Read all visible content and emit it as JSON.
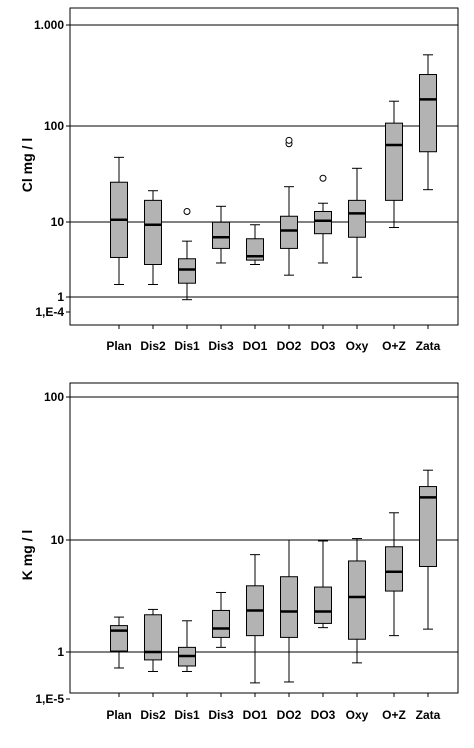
{
  "chart_data": [
    {
      "type": "boxplot",
      "ylabel": "Cl  mg / l",
      "yscale": "log",
      "ytick_labels": [
        "1,E-4",
        "1",
        "10",
        "100",
        "1.000"
      ],
      "categories": [
        "Plan",
        "Dis2",
        "Dis1",
        "Dis3",
        "DO1",
        "DO2",
        "DO3",
        "Oxy",
        "O+Z",
        "Zata"
      ],
      "boxes": [
        {
          "whisker_low": 1.4,
          "q1": 2.9,
          "median": 8.0,
          "q3": 22.0,
          "whisker_high": 43.0,
          "outliers": []
        },
        {
          "whisker_low": 1.4,
          "q1": 2.4,
          "median": 7.0,
          "q3": 13.5,
          "whisker_high": 17.5,
          "outliers": []
        },
        {
          "whisker_low": 0.93,
          "q1": 1.45,
          "median": 2.1,
          "q3": 2.8,
          "whisker_high": 4.5,
          "outliers": [
            10.0
          ]
        },
        {
          "whisker_low": 2.5,
          "q1": 3.7,
          "median": 5.0,
          "q3": 7.5,
          "whisker_high": 11.5,
          "outliers": []
        },
        {
          "whisker_low": 2.4,
          "q1": 2.7,
          "median": 3.0,
          "q3": 4.8,
          "whisker_high": 7.0,
          "outliers": []
        },
        {
          "whisker_low": 1.8,
          "q1": 3.7,
          "median": 6.0,
          "q3": 8.8,
          "whisker_high": 19.5,
          "outliers": [
            62.0,
            68.0
          ]
        },
        {
          "whisker_low": 2.5,
          "q1": 5.5,
          "median": 7.8,
          "q3": 10.0,
          "whisker_high": 12.5,
          "outliers": [
            24.5
          ]
        },
        {
          "whisker_low": 1.7,
          "q1": 5.0,
          "median": 9.5,
          "q3": 13.5,
          "whisker_high": 32.0,
          "outliers": []
        },
        {
          "whisker_low": 6.5,
          "q1": 13.5,
          "median": 60.0,
          "q3": 108.0,
          "whisker_high": 195.0,
          "outliers": []
        },
        {
          "whisker_low": 18.0,
          "q1": 50.0,
          "median": 205.0,
          "q3": 400.0,
          "whisker_high": 680.0,
          "outliers": []
        }
      ]
    },
    {
      "type": "boxplot",
      "ylabel": "K  mg / l",
      "yscale": "log",
      "ytick_labels": [
        "1,E-5",
        "1",
        "10",
        "100"
      ],
      "categories": [
        "Plan",
        "Dis2",
        "Dis1",
        "Dis3",
        "DO1",
        "DO2",
        "DO3",
        "Oxy",
        "O+Z",
        "Zata"
      ],
      "boxes": [
        {
          "whisker_low": 0.72,
          "q1": 1.02,
          "median": 1.55,
          "q3": 1.72,
          "whisker_high": 2.05,
          "outliers": []
        },
        {
          "whisker_low": 0.67,
          "q1": 0.85,
          "median": 1.0,
          "q3": 2.15,
          "whisker_high": 2.4,
          "outliers": []
        },
        {
          "whisker_low": 0.67,
          "q1": 0.75,
          "median": 0.92,
          "q3": 1.1,
          "whisker_high": 1.9,
          "outliers": []
        },
        {
          "whisker_low": 1.1,
          "q1": 1.35,
          "median": 1.62,
          "q3": 2.35,
          "whisker_high": 3.4,
          "outliers": []
        },
        {
          "whisker_low": 0.53,
          "q1": 1.4,
          "median": 2.35,
          "q3": 3.9,
          "whisker_high": 7.4,
          "outliers": []
        },
        {
          "whisker_low": 0.54,
          "q1": 1.35,
          "median": 2.3,
          "q3": 4.7,
          "whisker_high": 10.0,
          "outliers": []
        },
        {
          "whisker_low": 1.65,
          "q1": 1.8,
          "median": 2.3,
          "q3": 3.8,
          "whisker_high": 9.8,
          "outliers": []
        },
        {
          "whisker_low": 0.8,
          "q1": 1.3,
          "median": 3.1,
          "q3": 6.5,
          "whisker_high": 10.3,
          "outliers": []
        },
        {
          "whisker_low": 1.4,
          "q1": 3.5,
          "median": 5.2,
          "q3": 8.7,
          "whisker_high": 17.5,
          "outliers": []
        },
        {
          "whisker_low": 1.6,
          "q1": 5.8,
          "median": 24.0,
          "q3": 30.0,
          "whisker_high": 42.0,
          "outliers": []
        }
      ]
    }
  ],
  "colors": {
    "box_fill": "#b3b3b3",
    "stroke": "#000000"
  }
}
